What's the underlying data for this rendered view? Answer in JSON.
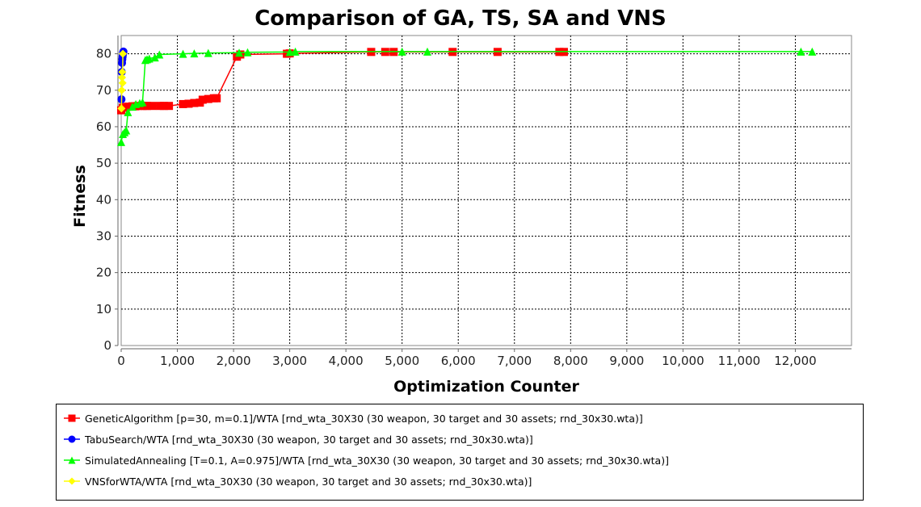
{
  "chart_data": {
    "type": "line",
    "title": "Comparison of GA, TS, SA and VNS",
    "xlabel": "Optimization Counter",
    "ylabel": "Fitness",
    "xlim": [
      0,
      13000
    ],
    "ylim": [
      0,
      85
    ],
    "x_ticks": [
      0,
      1000,
      2000,
      3000,
      4000,
      5000,
      6000,
      7000,
      8000,
      9000,
      10000,
      11000,
      12000
    ],
    "x_tick_labels": [
      "0",
      "1,000",
      "2,000",
      "3,000",
      "4,000",
      "5,000",
      "6,000",
      "7,000",
      "8,000",
      "9,000",
      "10,000",
      "11,000",
      "12,000"
    ],
    "y_ticks": [
      0,
      10,
      20,
      30,
      40,
      50,
      60,
      70,
      80
    ],
    "y_tick_labels": [
      "0",
      "10",
      "20",
      "30",
      "40",
      "50",
      "60",
      "70",
      "80"
    ],
    "grid": true,
    "legend_position": "bottom",
    "series": [
      {
        "name": "GeneticAlgorithm [p=30, m=0.1]/WTA [rnd_wta_30X30 (30 weapon, 30 target and 30 assets; rnd_30x30.wta)]",
        "color": "#ff0000",
        "marker": "square",
        "x": [
          0,
          30,
          60,
          90,
          130,
          200,
          250,
          300,
          380,
          420,
          460,
          560,
          700,
          760,
          850,
          1100,
          1200,
          1300,
          1400,
          1450,
          1550,
          1650,
          1700,
          2060,
          2120,
          2950,
          3000,
          4450,
          4700,
          4850,
          5900,
          6700,
          7800,
          7880
        ],
        "y": [
          64.5,
          65.2,
          65.3,
          65.4,
          65.5,
          65.6,
          65.6,
          65.7,
          65.7,
          65.7,
          65.7,
          65.7,
          65.7,
          65.7,
          65.7,
          66.2,
          66.3,
          66.5,
          66.6,
          67.4,
          67.6,
          67.8,
          67.8,
          79.2,
          79.8,
          80.0,
          80.1,
          80.5,
          80.5,
          80.5,
          80.5,
          80.5,
          80.5,
          80.5
        ]
      },
      {
        "name": "TabuSearch/WTA [rnd_wta_30X30 (30 weapon, 30 target and 30 assets; rnd_30x30.wta)]",
        "color": "#0000ff",
        "marker": "circle",
        "x": [
          5,
          10,
          15,
          20,
          25,
          30,
          35,
          40
        ],
        "y": [
          67.5,
          75.0,
          77.5,
          78.5,
          79.2,
          79.8,
          80.3,
          80.6
        ]
      },
      {
        "name": "SimulatedAnnealing [T=0.1, A=0.975]/WTA [rnd_wta_30X30 (30 weapon, 30 target and 30 assets; rnd_30x30.wta)]",
        "color": "#00ff00",
        "marker": "triangle",
        "x": [
          0,
          30,
          60,
          90,
          120,
          200,
          260,
          330,
          380,
          430,
          460,
          500,
          600,
          680,
          1100,
          1300,
          1550,
          2100,
          2250,
          3000,
          3100,
          5000,
          5450,
          12100,
          12300
        ],
        "y": [
          55.8,
          58.0,
          58.5,
          59.0,
          64.0,
          65.5,
          66.2,
          66.5,
          66.7,
          78.3,
          78.5,
          78.7,
          79.0,
          79.8,
          80.0,
          80.1,
          80.2,
          80.3,
          80.4,
          80.5,
          80.6,
          80.6,
          80.6,
          80.6,
          80.6
        ]
      },
      {
        "name": "VNSforWTA/WTA [rnd_wta_30X30 (30 weapon, 30 target and 30 assets; rnd_30x30.wta)]",
        "color": "#ffff00",
        "marker": "diamond",
        "x": [
          5,
          10,
          15,
          20,
          25,
          30
        ],
        "y": [
          65.0,
          70.0,
          73.5,
          75.0,
          72.0,
          80.0
        ]
      }
    ]
  }
}
